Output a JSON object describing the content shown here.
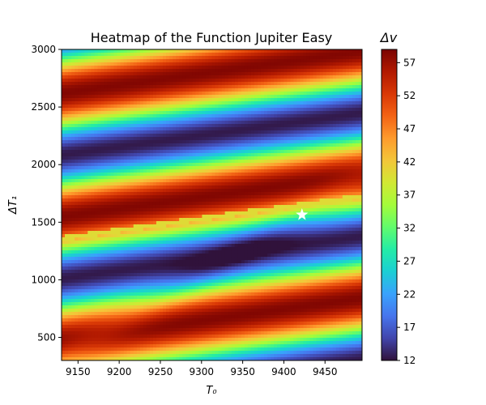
{
  "chart_data": {
    "type": "heatmap",
    "title": "Heatmap of the Function Jupiter Easy",
    "xlabel": "T₀",
    "ylabel": "ΔT₁",
    "colorbar_label": "Δv",
    "xlim": [
      9130,
      9495
    ],
    "ylim": [
      300,
      3000
    ],
    "x_ticks": [
      9150,
      9200,
      9250,
      9300,
      9350,
      9400,
      9450
    ],
    "y_ticks": [
      500,
      1000,
      1500,
      2000,
      2500,
      3000
    ],
    "colorbar_range": [
      12,
      59
    ],
    "colorbar_ticks": [
      12,
      17,
      22,
      27,
      32,
      37,
      42,
      47,
      52,
      57
    ],
    "colormap": [
      "#30123b",
      "#4145ab",
      "#4675ed",
      "#39a2fc",
      "#1bcfd4",
      "#24eca6",
      "#61fc6c",
      "#a4fc3b",
      "#d1e834",
      "#f3c63a",
      "#fe9b2d",
      "#f36315",
      "#d93806",
      "#b11901",
      "#7a0402"
    ],
    "grid": false,
    "optimum": {
      "x": 9422,
      "y": 1565,
      "marker": "star",
      "color": "#ffffff"
    }
  }
}
